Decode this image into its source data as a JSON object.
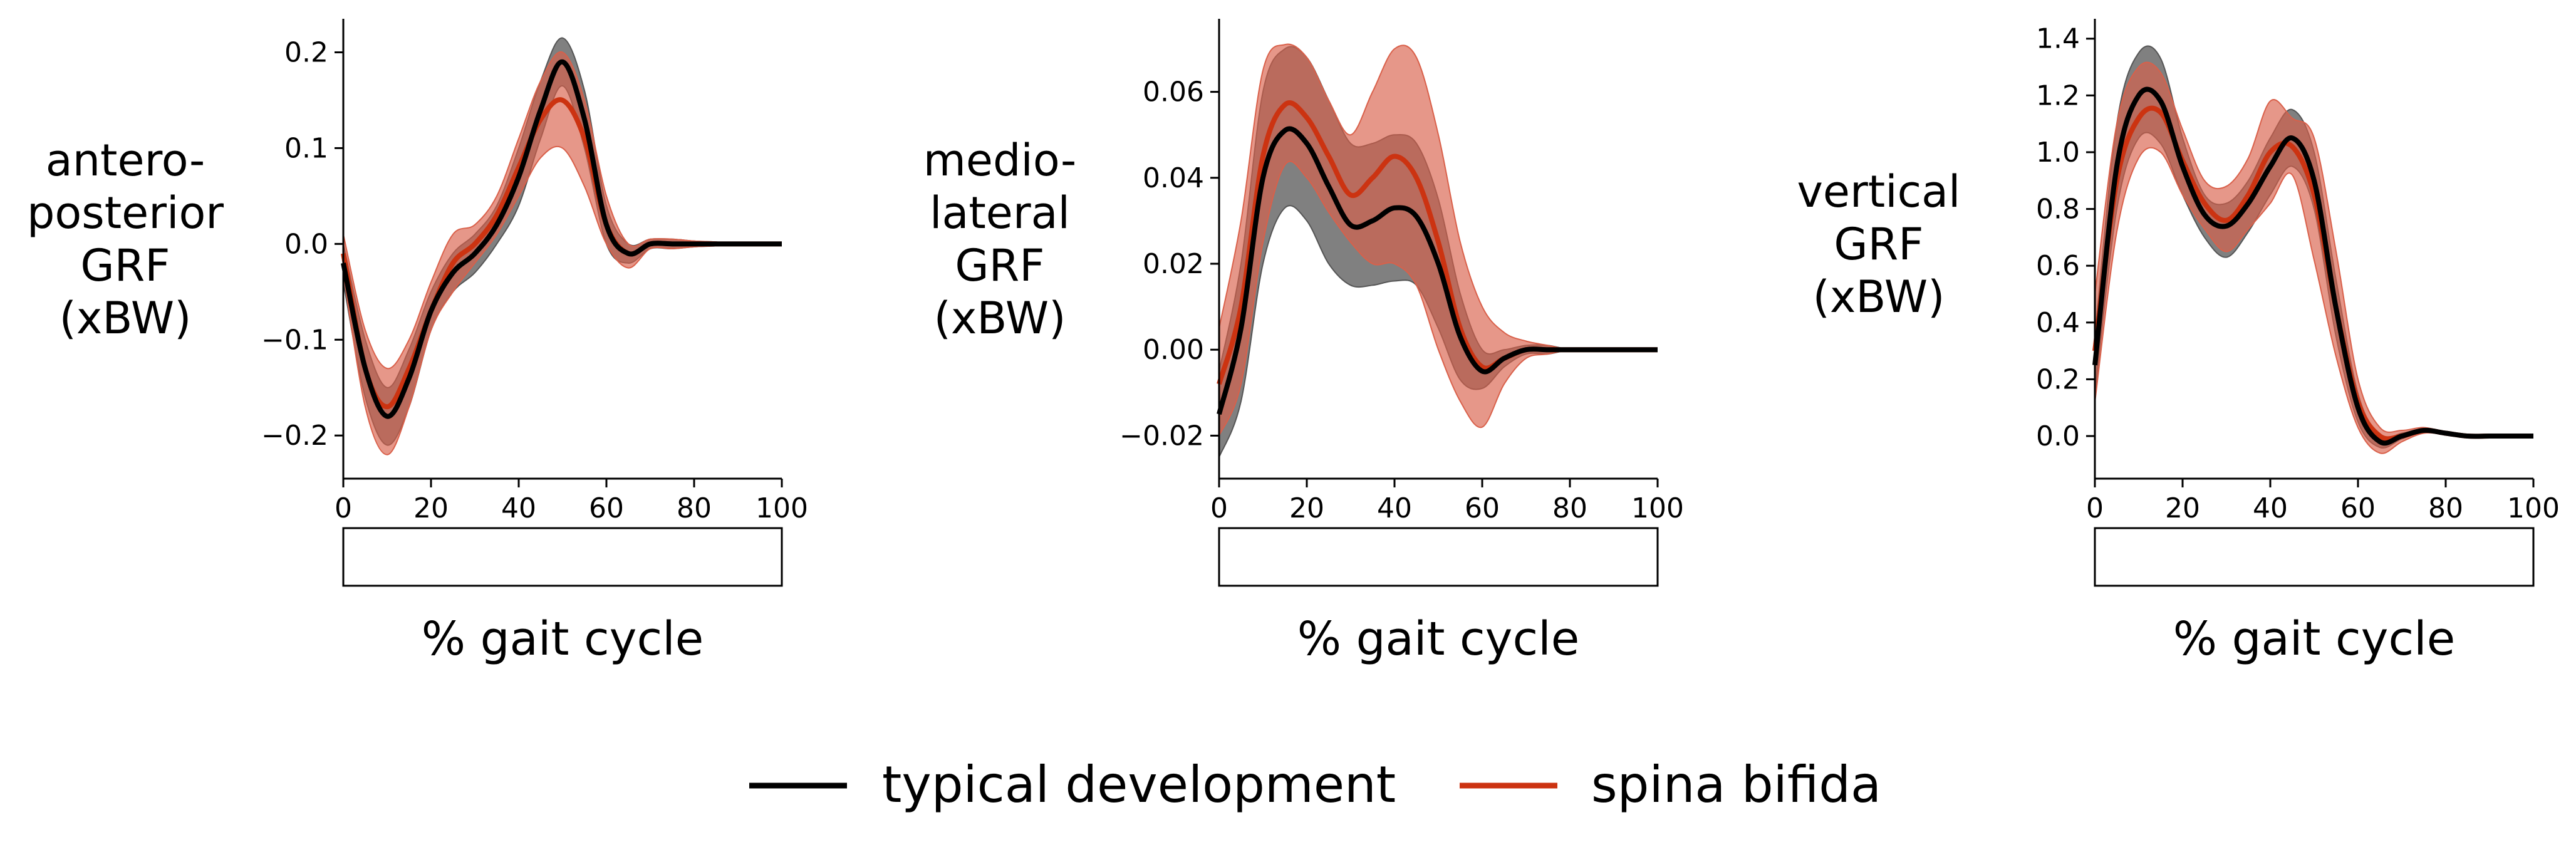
{
  "colors": {
    "typical": "#000000",
    "typical_band": "#555555",
    "spina": "#cc3311",
    "spina_band": "#d9604a"
  },
  "legend": {
    "typical": "typical development",
    "spina": "spina bifida"
  },
  "chart_data": [
    {
      "type": "line",
      "ylabel": [
        "antero-",
        "posterior",
        "GRF",
        "(xBW)"
      ],
      "xlabel": "% gait cycle",
      "xlim": [
        0,
        100
      ],
      "ylim": [
        -0.245,
        0.235
      ],
      "xticks": [
        0,
        20,
        40,
        60,
        80,
        100
      ],
      "yticks": [
        -0.2,
        -0.1,
        0.0,
        0.1,
        0.2
      ],
      "ytick_labels": [
        "−0.2",
        "−0.1",
        "0.0",
        "0.1",
        "0.2"
      ],
      "x": [
        0,
        5,
        10,
        15,
        20,
        25,
        30,
        35,
        40,
        45,
        50,
        55,
        60,
        65,
        70,
        75,
        80,
        85,
        90,
        95,
        100
      ],
      "series": [
        {
          "name": "typical development",
          "mean": [
            -0.02,
            -0.13,
            -0.18,
            -0.14,
            -0.07,
            -0.03,
            -0.01,
            0.02,
            0.07,
            0.14,
            0.19,
            0.13,
            0.02,
            -0.01,
            0.0,
            0.0,
            0.0,
            0.0,
            0.0,
            0.0,
            0.0
          ],
          "upper": [
            0.0,
            -0.1,
            -0.15,
            -0.11,
            -0.05,
            -0.01,
            0.01,
            0.04,
            0.1,
            0.17,
            0.215,
            0.16,
            0.04,
            0.0,
            0.005,
            0.005,
            0.003,
            0.002,
            0.0,
            0.0,
            0.0
          ],
          "lower": [
            -0.04,
            -0.16,
            -0.21,
            -0.17,
            -0.09,
            -0.05,
            -0.03,
            0.0,
            0.04,
            0.11,
            0.165,
            0.1,
            0.0,
            -0.02,
            -0.005,
            -0.005,
            -0.003,
            -0.002,
            0.0,
            0.0,
            0.0
          ]
        },
        {
          "name": "spina bifida",
          "mean": [
            -0.01,
            -0.13,
            -0.17,
            -0.13,
            -0.07,
            -0.02,
            0.0,
            0.03,
            0.08,
            0.13,
            0.15,
            0.11,
            0.02,
            -0.01,
            0.0,
            0.0,
            0.0,
            0.0,
            0.0,
            0.0,
            0.0
          ],
          "upper": [
            0.01,
            -0.09,
            -0.13,
            -0.1,
            -0.04,
            0.01,
            0.02,
            0.05,
            0.11,
            0.17,
            0.2,
            0.15,
            0.05,
            0.0,
            0.005,
            0.005,
            0.003,
            0.002,
            0.0,
            0.0,
            0.0
          ],
          "lower": [
            -0.03,
            -0.17,
            -0.22,
            -0.17,
            -0.09,
            -0.05,
            -0.02,
            0.01,
            0.05,
            0.09,
            0.1,
            0.06,
            0.0,
            -0.025,
            -0.005,
            -0.005,
            -0.003,
            -0.002,
            0.0,
            0.0,
            0.0
          ]
        }
      ]
    },
    {
      "type": "line",
      "ylabel": [
        "medio-",
        "lateral",
        "GRF",
        "(xBW)"
      ],
      "xlabel": "% gait cycle",
      "xlim": [
        0,
        100
      ],
      "ylim": [
        -0.03,
        0.077
      ],
      "xticks": [
        0,
        20,
        40,
        60,
        80,
        100
      ],
      "yticks": [
        -0.02,
        0.0,
        0.02,
        0.04,
        0.06
      ],
      "ytick_labels": [
        "−0.02",
        "0.00",
        "0.02",
        "0.04",
        "0.06"
      ],
      "x": [
        0,
        5,
        10,
        15,
        20,
        25,
        30,
        35,
        40,
        45,
        50,
        55,
        60,
        65,
        70,
        75,
        80,
        85,
        90,
        95,
        100
      ],
      "series": [
        {
          "name": "typical development",
          "mean": [
            -0.015,
            0.005,
            0.04,
            0.051,
            0.048,
            0.038,
            0.029,
            0.03,
            0.033,
            0.031,
            0.02,
            0.003,
            -0.005,
            -0.002,
            0.0,
            0.0,
            0.0,
            0.0,
            0.0,
            0.0,
            0.0
          ],
          "upper": [
            -0.005,
            0.02,
            0.06,
            0.07,
            0.068,
            0.058,
            0.048,
            0.048,
            0.05,
            0.048,
            0.035,
            0.013,
            0.0,
            0.0,
            0.001,
            0.001,
            0.0,
            0.0,
            0.0,
            0.0,
            0.0
          ],
          "lower": [
            -0.025,
            -0.012,
            0.02,
            0.033,
            0.03,
            0.02,
            0.015,
            0.015,
            0.016,
            0.015,
            0.005,
            -0.007,
            -0.009,
            -0.004,
            -0.001,
            -0.001,
            0.0,
            0.0,
            0.0,
            0.0,
            0.0
          ]
        },
        {
          "name": "spina bifida",
          "mean": [
            -0.008,
            0.01,
            0.045,
            0.057,
            0.054,
            0.045,
            0.036,
            0.04,
            0.045,
            0.04,
            0.025,
            0.005,
            -0.004,
            -0.002,
            0.0,
            0.0,
            0.0,
            0.0,
            0.0,
            0.0,
            0.0
          ],
          "upper": [
            0.005,
            0.03,
            0.065,
            0.071,
            0.068,
            0.058,
            0.05,
            0.06,
            0.07,
            0.068,
            0.05,
            0.025,
            0.01,
            0.004,
            0.002,
            0.001,
            0.0,
            0.0,
            0.0,
            0.0,
            0.0
          ],
          "lower": [
            -0.02,
            -0.008,
            0.025,
            0.043,
            0.04,
            0.032,
            0.025,
            0.02,
            0.02,
            0.015,
            0.0,
            -0.012,
            -0.018,
            -0.008,
            -0.002,
            -0.001,
            0.0,
            0.0,
            0.0,
            0.0,
            0.0
          ]
        }
      ]
    },
    {
      "type": "line",
      "ylabel": [
        "vertical",
        "GRF",
        "(xBW)"
      ],
      "xlabel": "% gait cycle",
      "xlim": [
        0,
        100
      ],
      "ylim": [
        -0.15,
        1.47
      ],
      "xticks": [
        0,
        20,
        40,
        60,
        80,
        100
      ],
      "yticks": [
        0.0,
        0.2,
        0.4,
        0.6,
        0.8,
        1.0,
        1.2,
        1.4
      ],
      "ytick_labels": [
        "0.0",
        "0.2",
        "0.4",
        "0.6",
        "0.8",
        "1.0",
        "1.2",
        "1.4"
      ],
      "x": [
        0,
        5,
        10,
        15,
        20,
        25,
        30,
        35,
        40,
        45,
        50,
        55,
        60,
        65,
        70,
        75,
        80,
        85,
        90,
        95,
        100
      ],
      "series": [
        {
          "name": "typical development",
          "mean": [
            0.25,
            0.95,
            1.2,
            1.18,
            0.95,
            0.78,
            0.74,
            0.82,
            0.95,
            1.05,
            0.9,
            0.45,
            0.1,
            -0.02,
            0.0,
            0.02,
            0.01,
            0.0,
            0.0,
            0.0,
            0.0
          ],
          "upper": [
            0.35,
            1.1,
            1.35,
            1.33,
            1.05,
            0.85,
            0.82,
            0.9,
            1.05,
            1.15,
            1.0,
            0.55,
            0.15,
            0.0,
            0.01,
            0.025,
            0.015,
            0.005,
            0.0,
            0.0,
            0.0
          ],
          "lower": [
            0.15,
            0.8,
            1.05,
            1.03,
            0.85,
            0.7,
            0.63,
            0.72,
            0.85,
            0.95,
            0.8,
            0.35,
            0.05,
            -0.04,
            -0.01,
            0.015,
            0.005,
            -0.005,
            0.0,
            0.0,
            0.0
          ]
        },
        {
          "name": "spina bifida",
          "mean": [
            0.3,
            0.9,
            1.12,
            1.14,
            0.97,
            0.82,
            0.76,
            0.85,
            1.0,
            1.02,
            0.85,
            0.45,
            0.12,
            0.0,
            0.0,
            0.02,
            0.01,
            0.0,
            0.0,
            0.0,
            0.0
          ],
          "upper": [
            0.5,
            1.1,
            1.3,
            1.28,
            1.08,
            0.9,
            0.88,
            0.98,
            1.18,
            1.12,
            1.05,
            0.65,
            0.2,
            0.03,
            0.02,
            0.03,
            0.015,
            0.005,
            0.0,
            0.0,
            0.0
          ],
          "lower": [
            0.12,
            0.72,
            0.98,
            1.0,
            0.85,
            0.73,
            0.65,
            0.73,
            0.82,
            0.92,
            0.62,
            0.28,
            0.03,
            -0.06,
            -0.02,
            0.01,
            0.005,
            -0.005,
            0.0,
            0.0,
            0.0
          ]
        }
      ]
    }
  ]
}
